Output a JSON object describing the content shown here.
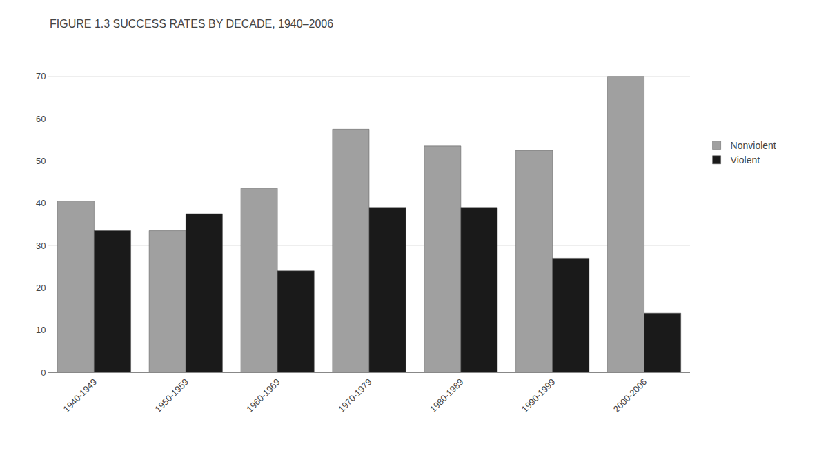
{
  "chart_data": {
    "type": "bar",
    "title": "FIGURE 1.3 SUCCESS RATES BY DECADE, 1940–2006",
    "categories": [
      "1940-1949",
      "1950-1959",
      "1960-1969",
      "1970-1979",
      "1980-1989",
      "1990-1999",
      "2000-2006"
    ],
    "series": [
      {
        "name": "Nonviolent",
        "color": "#a0a0a0",
        "values": [
          40.5,
          33.5,
          43.5,
          57.5,
          53.5,
          52.5,
          70.0
        ]
      },
      {
        "name": "Violent",
        "color": "#1a1a1a",
        "values": [
          33.5,
          37.5,
          24.0,
          39.0,
          39.0,
          27.0,
          14.0
        ]
      }
    ],
    "ylim": [
      0,
      75
    ],
    "yticks": [
      0,
      10,
      20,
      30,
      40,
      50,
      60,
      70
    ],
    "grid": true,
    "legend": "right"
  }
}
